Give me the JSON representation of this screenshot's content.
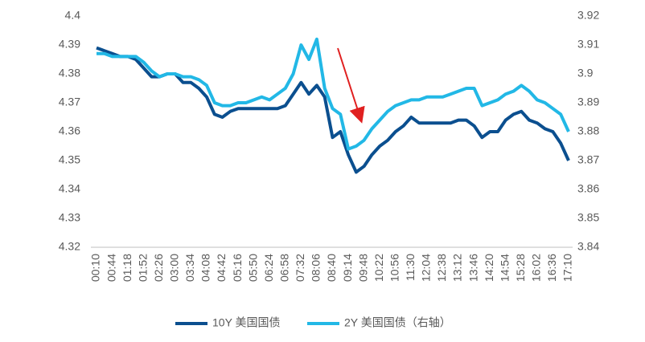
{
  "chart_data": {
    "type": "line",
    "categories": [
      "00:10",
      null,
      "00:44",
      null,
      "01:18",
      null,
      "01:52",
      null,
      "02:26",
      null,
      "03:00",
      null,
      "03:34",
      null,
      "04:08",
      null,
      "04:42",
      null,
      "05:16",
      null,
      "05:50",
      null,
      "06:24",
      null,
      "06:58",
      null,
      "07:32",
      null,
      "08:06",
      null,
      "08:40",
      null,
      "09:14",
      null,
      "09:48",
      null,
      "10:22",
      null,
      "10:56",
      null,
      "11:30",
      null,
      "12:04",
      null,
      "12:38",
      null,
      "13:12",
      null,
      "13:46",
      null,
      "14:20",
      null,
      "14:54",
      null,
      "15:28",
      null,
      "16:02",
      null,
      "16:36",
      null,
      "17:10"
    ],
    "series": [
      {
        "name": "10Y 美国国债",
        "color": "#0b4f8f",
        "values": [
          4.389,
          4.388,
          4.387,
          4.386,
          4.386,
          4.385,
          4.382,
          4.379,
          4.379,
          4.38,
          4.38,
          4.377,
          4.377,
          4.375,
          4.372,
          4.366,
          4.365,
          4.367,
          4.368,
          4.368,
          4.368,
          4.368,
          4.368,
          4.368,
          4.369,
          4.373,
          4.377,
          4.373,
          4.376,
          4.372,
          4.358,
          4.36,
          4.352,
          4.346,
          4.348,
          4.352,
          4.355,
          4.357,
          4.36,
          4.362,
          4.365,
          4.363,
          4.363,
          4.363,
          4.363,
          4.363,
          4.364,
          4.364,
          4.362,
          4.358,
          4.36,
          4.36,
          4.364,
          4.366,
          4.367,
          4.364,
          4.363,
          4.361,
          4.36,
          4.356,
          4.35
        ]
      },
      {
        "name": "2Y 美国国债（右轴）",
        "color": "#22b8e6",
        "axis": "y2",
        "values": [
          3.907,
          3.907,
          3.906,
          3.906,
          3.906,
          3.906,
          3.904,
          3.901,
          3.899,
          3.9,
          3.9,
          3.899,
          3.899,
          3.898,
          3.896,
          3.89,
          3.889,
          3.889,
          3.89,
          3.89,
          3.891,
          3.892,
          3.891,
          3.893,
          3.895,
          3.9,
          3.91,
          3.905,
          3.912,
          3.895,
          3.888,
          3.886,
          3.874,
          3.875,
          3.877,
          3.881,
          3.884,
          3.887,
          3.889,
          3.89,
          3.891,
          3.891,
          3.892,
          3.892,
          3.892,
          3.893,
          3.894,
          3.895,
          3.895,
          3.889,
          3.89,
          3.891,
          3.893,
          3.894,
          3.896,
          3.894,
          3.891,
          3.89,
          3.888,
          3.886,
          3.88
        ]
      }
    ],
    "ylim": [
      4.32,
      4.4
    ],
    "yticks": [
      4.32,
      4.33,
      4.34,
      4.35,
      4.36,
      4.37,
      4.38,
      4.39,
      4.4
    ],
    "y2lim": [
      3.84,
      3.92
    ],
    "y2ticks": [
      3.84,
      3.85,
      3.86,
      3.87,
      3.88,
      3.89,
      3.9,
      3.91,
      3.92
    ],
    "grid": false,
    "legend": "bottom"
  }
}
